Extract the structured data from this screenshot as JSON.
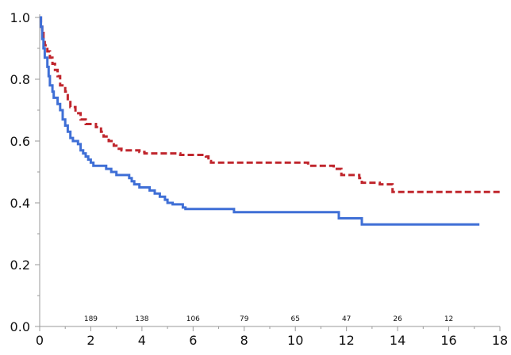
{
  "chart_data": {
    "type": "line",
    "xlim": [
      0,
      18
    ],
    "ylim": [
      0.0,
      1.0
    ],
    "x_ticks": [
      "0",
      "2",
      "4",
      "6",
      "8",
      "10",
      "12",
      "14",
      "16",
      "18"
    ],
    "y_ticks": [
      "0.0",
      "0.2",
      "0.4",
      "0.6",
      "0.8",
      "1.0"
    ],
    "grid": false,
    "series": [
      {
        "color": "#c0262d",
        "style": "dashed-step",
        "points": [
          [
            0,
            1.0
          ],
          [
            0.05,
            0.97
          ],
          [
            0.1,
            0.95
          ],
          [
            0.15,
            0.93
          ],
          [
            0.2,
            0.91
          ],
          [
            0.3,
            0.89
          ],
          [
            0.4,
            0.87
          ],
          [
            0.5,
            0.85
          ],
          [
            0.6,
            0.83
          ],
          [
            0.7,
            0.81
          ],
          [
            0.8,
            0.78
          ],
          [
            1.0,
            0.76
          ],
          [
            1.1,
            0.73
          ],
          [
            1.2,
            0.71
          ],
          [
            1.4,
            0.69
          ],
          [
            1.6,
            0.67
          ],
          [
            1.8,
            0.655
          ],
          [
            2.2,
            0.645
          ],
          [
            2.4,
            0.63
          ],
          [
            2.5,
            0.615
          ],
          [
            2.7,
            0.6
          ],
          [
            2.9,
            0.585
          ],
          [
            3.0,
            0.575
          ],
          [
            3.2,
            0.57
          ],
          [
            3.9,
            0.565
          ],
          [
            4.1,
            0.56
          ],
          [
            5.5,
            0.555
          ],
          [
            6.5,
            0.55
          ],
          [
            6.6,
            0.535
          ],
          [
            6.7,
            0.53
          ],
          [
            10.5,
            0.52
          ],
          [
            11.5,
            0.51
          ],
          [
            11.8,
            0.49
          ],
          [
            12.5,
            0.48
          ],
          [
            12.6,
            0.465
          ],
          [
            13.3,
            0.46
          ],
          [
            13.8,
            0.435
          ],
          [
            18.0,
            0.435
          ]
        ]
      },
      {
        "color": "#3f6fd6",
        "style": "solid-step",
        "points": [
          [
            0,
            1.0
          ],
          [
            0.05,
            0.97
          ],
          [
            0.1,
            0.93
          ],
          [
            0.15,
            0.9
          ],
          [
            0.2,
            0.87
          ],
          [
            0.3,
            0.84
          ],
          [
            0.35,
            0.81
          ],
          [
            0.4,
            0.78
          ],
          [
            0.5,
            0.76
          ],
          [
            0.55,
            0.74
          ],
          [
            0.7,
            0.72
          ],
          [
            0.8,
            0.7
          ],
          [
            0.9,
            0.67
          ],
          [
            1.0,
            0.65
          ],
          [
            1.1,
            0.63
          ],
          [
            1.2,
            0.61
          ],
          [
            1.3,
            0.6
          ],
          [
            1.5,
            0.59
          ],
          [
            1.6,
            0.57
          ],
          [
            1.7,
            0.56
          ],
          [
            1.8,
            0.55
          ],
          [
            1.9,
            0.54
          ],
          [
            2.0,
            0.53
          ],
          [
            2.1,
            0.52
          ],
          [
            2.6,
            0.51
          ],
          [
            2.8,
            0.5
          ],
          [
            3.0,
            0.49
          ],
          [
            3.5,
            0.48
          ],
          [
            3.6,
            0.47
          ],
          [
            3.7,
            0.46
          ],
          [
            3.9,
            0.45
          ],
          [
            4.3,
            0.44
          ],
          [
            4.5,
            0.43
          ],
          [
            4.7,
            0.42
          ],
          [
            4.9,
            0.41
          ],
          [
            5.0,
            0.4
          ],
          [
            5.2,
            0.395
          ],
          [
            5.6,
            0.385
          ],
          [
            5.7,
            0.38
          ],
          [
            7.6,
            0.37
          ],
          [
            11.7,
            0.35
          ],
          [
            12.6,
            0.33
          ],
          [
            17.2,
            0.33
          ]
        ]
      }
    ],
    "risk_table": {
      "x": [
        2,
        4,
        6,
        8,
        10,
        12,
        14,
        16
      ],
      "values": [
        "189",
        "138",
        "106",
        "79",
        "65",
        "47",
        "26",
        "12"
      ]
    }
  }
}
